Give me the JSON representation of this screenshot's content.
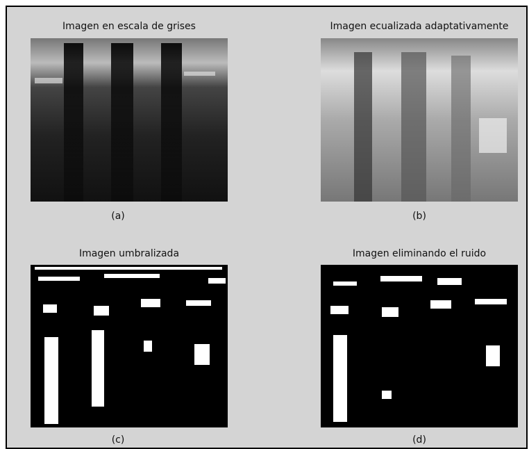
{
  "panels": [
    {
      "title": "Imagen en escala de grises",
      "caption": "(a)"
    },
    {
      "title": "Imagen ecualizada adaptativamente",
      "caption": "(b)"
    },
    {
      "title": "Imagen umbralizada",
      "caption": "(c)"
    },
    {
      "title": "Imagen eliminando el ruido",
      "caption": "(d)"
    }
  ]
}
